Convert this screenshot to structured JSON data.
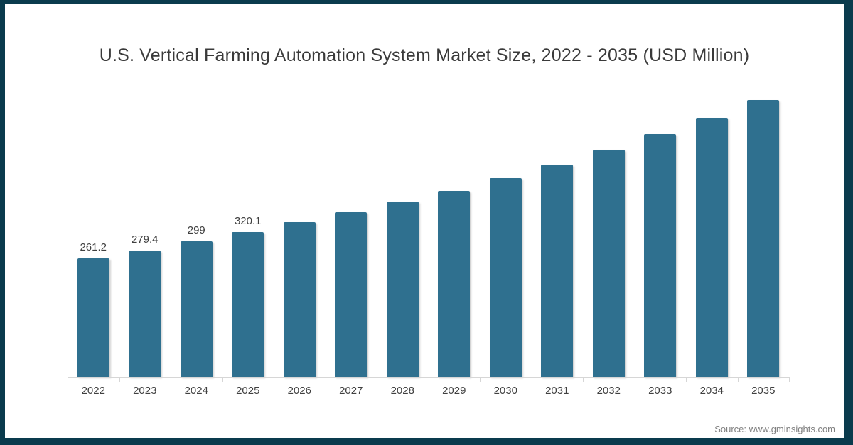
{
  "chart_data": {
    "type": "bar",
    "title": "U.S. Vertical Farming Automation System Market Size, 2022 - 2035 (USD Million)",
    "categories": [
      "2022",
      "2023",
      "2024",
      "2025",
      "2026",
      "2027",
      "2028",
      "2029",
      "2030",
      "2031",
      "2032",
      "2033",
      "2034",
      "2035"
    ],
    "values": [
      261.2,
      279.4,
      299,
      320.1,
      341,
      363,
      387,
      411,
      438,
      469,
      501,
      535,
      572,
      611
    ],
    "data_labels": [
      "261.2",
      "279.4",
      "299",
      "320.1",
      "",
      "",
      "",
      "",
      "",
      "",
      "",
      "",
      "",
      ""
    ],
    "bar_color": "#2f708f",
    "xlabel": "",
    "ylabel": "",
    "ylim": [
      0,
      650
    ],
    "grid": false,
    "legend": null,
    "axis_color": "#d6d6d6",
    "label_color": "#404040"
  },
  "frame": {
    "border_color": "#0a3b4d",
    "background": "#ffffff"
  },
  "source": {
    "label": "Source: www.gminsights.com"
  }
}
